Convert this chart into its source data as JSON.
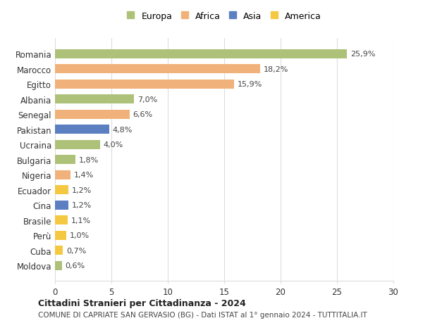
{
  "categories": [
    "Romania",
    "Marocco",
    "Egitto",
    "Albania",
    "Senegal",
    "Pakistan",
    "Ucraina",
    "Bulgaria",
    "Nigeria",
    "Ecuador",
    "Cina",
    "Brasile",
    "Perù",
    "Cuba",
    "Moldova"
  ],
  "values": [
    25.9,
    18.2,
    15.9,
    7.0,
    6.6,
    4.8,
    4.0,
    1.8,
    1.4,
    1.2,
    1.2,
    1.1,
    1.0,
    0.7,
    0.6
  ],
  "labels": [
    "25,9%",
    "18,2%",
    "15,9%",
    "7,0%",
    "6,6%",
    "4,8%",
    "4,0%",
    "1,8%",
    "1,4%",
    "1,2%",
    "1,2%",
    "1,1%",
    "1,0%",
    "0,7%",
    "0,6%"
  ],
  "continents": [
    "Europa",
    "Africa",
    "Africa",
    "Europa",
    "Africa",
    "Asia",
    "Europa",
    "Europa",
    "Africa",
    "America",
    "Asia",
    "America",
    "America",
    "America",
    "Europa"
  ],
  "colors": {
    "Europa": "#adc178",
    "Africa": "#f0b27a",
    "Asia": "#5b7fc1",
    "America": "#f5c842"
  },
  "legend_order": [
    "Europa",
    "Africa",
    "Asia",
    "America"
  ],
  "xlim": [
    0,
    30
  ],
  "xticks": [
    0,
    5,
    10,
    15,
    20,
    25,
    30
  ],
  "title": "Cittadini Stranieri per Cittadinanza - 2024",
  "subtitle": "COMUNE DI CAPRIATE SAN GERVASIO (BG) - Dati ISTAT al 1° gennaio 2024 - TUTTITALIA.IT",
  "background_color": "#ffffff",
  "grid_color": "#dddddd",
  "bar_height": 0.6
}
